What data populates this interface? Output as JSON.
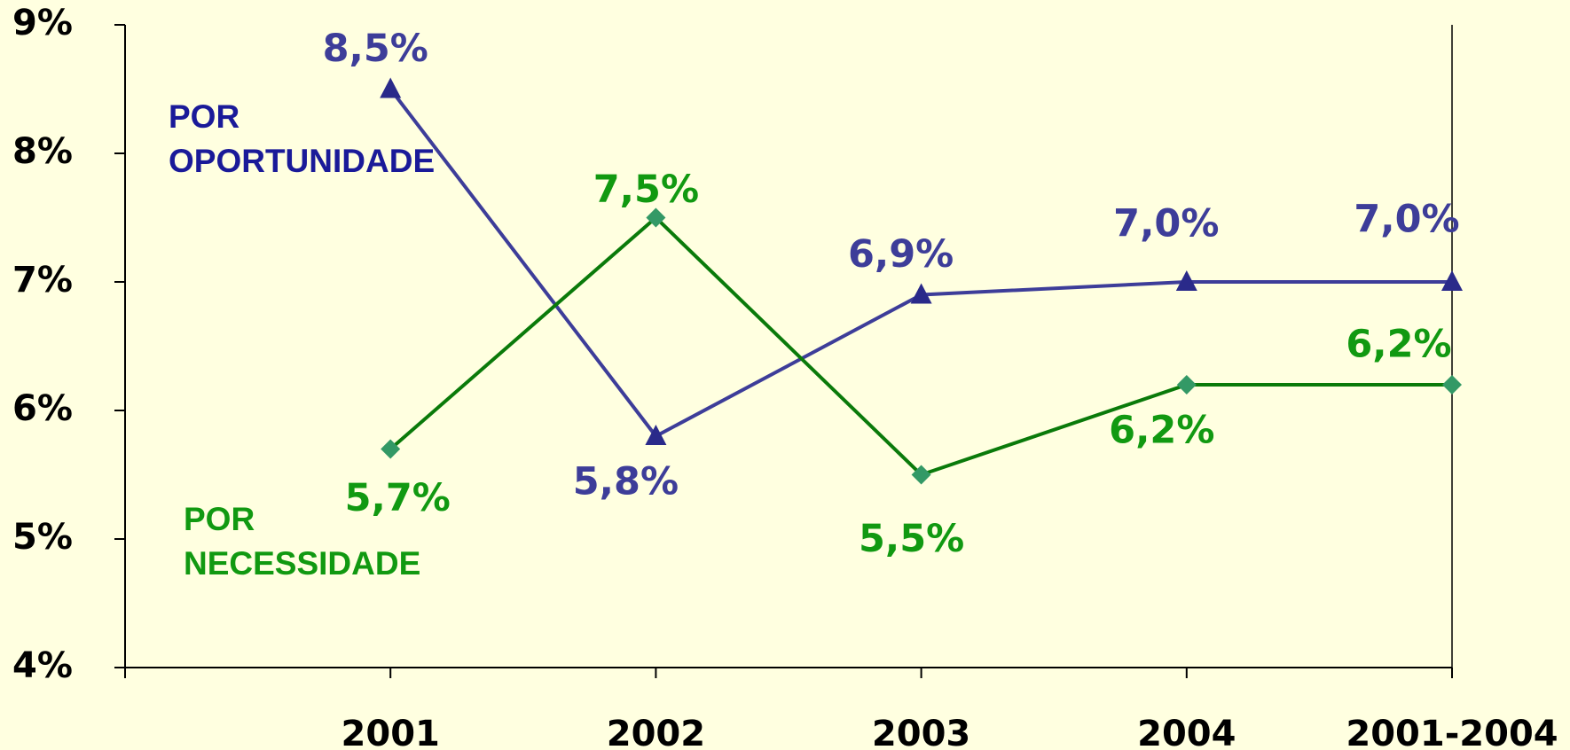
{
  "chart_data": {
    "type": "line",
    "categories": [
      "2001",
      "2002",
      "2003",
      "2004",
      "2001-2004"
    ],
    "ylim": [
      4,
      9
    ],
    "yticks": [
      {
        "value": 4,
        "label": "4%"
      },
      {
        "value": 5,
        "label": "5%"
      },
      {
        "value": 6,
        "label": "6%"
      },
      {
        "value": 7,
        "label": "7%"
      },
      {
        "value": 8,
        "label": "8%"
      },
      {
        "value": 9,
        "label": "9%"
      }
    ],
    "series": [
      {
        "name": "POR OPORTUNIDADE",
        "color": "#3d3d99",
        "marker": "triangle",
        "values": [
          8.5,
          5.8,
          6.9,
          7.0,
          7.0
        ],
        "value_labels": [
          "8,5%",
          "5,8%",
          "6,9%",
          "7,0%",
          "7,0%"
        ]
      },
      {
        "name": "POR NECESSIDADE",
        "color": "#0a7a0a",
        "marker": "diamond",
        "values": [
          5.7,
          7.5,
          5.5,
          6.2,
          6.2
        ],
        "value_labels": [
          "5,7%",
          "7,5%",
          "5,5%",
          "6,2%",
          "6,2%"
        ]
      }
    ]
  }
}
